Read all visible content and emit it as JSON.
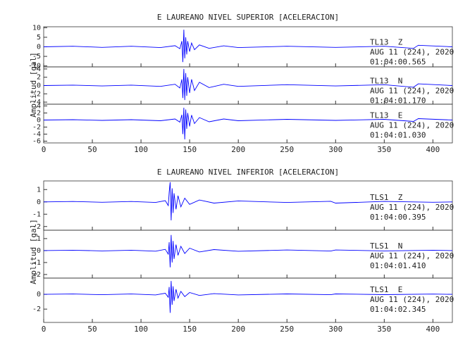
{
  "chart_data": [
    {
      "type": "line",
      "title": "E LAUREANO NIVEL SUPERIOR [ACELERACION]",
      "ylabel": "Amplitud [gal]",
      "xlim": [
        0,
        420
      ],
      "xticks": [
        0,
        50,
        100,
        150,
        200,
        250,
        300,
        350,
        400
      ],
      "x": [
        0,
        30,
        60,
        90,
        120,
        135,
        140,
        142,
        143,
        144,
        145,
        146,
        147,
        148,
        150,
        152,
        155,
        160,
        170,
        185,
        200,
        250,
        300,
        350,
        380,
        385,
        420
      ],
      "series": [
        {
          "name": "TL13  Z",
          "date": "AUG 11 (224), 2020",
          "time": "01:04:00.565",
          "color": "#0000ff",
          "ylim": [
            -10.5,
            10.5
          ],
          "yticks": [
            10,
            5,
            0,
            -5,
            -10
          ],
          "values": [
            0,
            0.3,
            -0.3,
            0.3,
            -0.4,
            0.6,
            -1,
            3,
            -8,
            9,
            -6,
            5,
            -4,
            3,
            -2.5,
            2,
            -1.5,
            1,
            -0.8,
            0.5,
            -0.4,
            0.3,
            -0.3,
            0.3,
            -0.8,
            0.8,
            0
          ]
        },
        {
          "name": "TL13  N",
          "date": "AUG 11 (224), 2020",
          "time": "01:04:01.170",
          "color": "#0000ff",
          "ylim": [
            -4.5,
            4.5
          ],
          "yticks": [
            4,
            2,
            0,
            -2,
            -4
          ],
          "values": [
            0,
            0.1,
            -0.1,
            0.1,
            -0.2,
            0.3,
            -0.6,
            1.5,
            -3,
            4,
            -3.5,
            3,
            -2.5,
            2,
            -1.8,
            1.5,
            -1.2,
            0.8,
            -0.5,
            0.3,
            -0.2,
            0.2,
            -0.1,
            0.2,
            -0.4,
            0.4,
            0
          ]
        },
        {
          "name": "TL13  E",
          "date": "AUG 11 (224), 2020",
          "time": "01:04:01.030",
          "color": "#0000ff",
          "ylim": [
            -6.5,
            4.5
          ],
          "yticks": [
            4,
            2,
            0,
            -2,
            -4,
            -6
          ],
          "values": [
            0,
            0.1,
            -0.1,
            0.1,
            -0.2,
            0.3,
            -0.6,
            1.5,
            -4,
            3.5,
            -5.5,
            3,
            -2.5,
            2,
            -1.8,
            1.4,
            -1,
            0.7,
            -0.5,
            0.3,
            -0.2,
            0.2,
            -0.1,
            0.2,
            -0.4,
            0.4,
            0
          ]
        }
      ]
    },
    {
      "type": "line",
      "title": "E LAUREANO NIVEL INFERIOR [ACELERACION]",
      "ylabel": "Amplitud [gal]",
      "xlim": [
        0,
        420
      ],
      "xticks": [
        0,
        50,
        100,
        150,
        200,
        250,
        300,
        350,
        400
      ],
      "x": [
        0,
        30,
        60,
        90,
        115,
        125,
        128,
        129,
        130,
        131,
        132,
        133,
        134,
        136,
        138,
        141,
        145,
        150,
        160,
        175,
        200,
        250,
        295,
        300,
        350,
        400,
        420
      ],
      "series": [
        {
          "name": "TLS1  Z",
          "date": "AUG 11 (224), 2020",
          "time": "01:04:00.395",
          "color": "#0000ff",
          "ylim": [
            -2.3,
            1.7
          ],
          "yticks": [
            1,
            0,
            -1,
            -2
          ],
          "values": [
            0,
            0.03,
            -0.03,
            0.03,
            -0.05,
            0.1,
            -0.3,
            0.8,
            1.6,
            -1.5,
            1.1,
            -0.9,
            0.7,
            -0.6,
            0.5,
            -0.4,
            0.3,
            -0.2,
            0.15,
            -0.1,
            0.08,
            -0.05,
            0.05,
            -0.1,
            0.04,
            -0.03,
            0
          ]
        },
        {
          "name": "TLS1  N",
          "date": "AUG 11 (224), 2020",
          "time": "01:04:01.410",
          "color": "#0000ff",
          "ylim": [
            -2.3,
            1.7
          ],
          "yticks": [
            1,
            0,
            -1,
            -2
          ],
          "values": [
            0,
            0.03,
            -0.03,
            0.03,
            -0.05,
            0.1,
            -0.3,
            0.7,
            -1.4,
            1.3,
            -1,
            0.8,
            -0.7,
            0.5,
            -0.4,
            0.35,
            -0.25,
            0.2,
            -0.12,
            0.08,
            -0.06,
            0.05,
            -0.04,
            0.05,
            -0.03,
            0.03,
            0
          ]
        },
        {
          "name": "TLS1  E",
          "date": "AUG 11 (224), 2020",
          "time": "01:04:02.345",
          "color": "#0000ff",
          "ylim": [
            -3.8,
            2.2
          ],
          "yticks": [
            0,
            -2
          ],
          "values": [
            0,
            0.05,
            -0.05,
            0.05,
            -0.08,
            0.15,
            -0.4,
            1,
            -2.5,
            1.8,
            -1.4,
            1.1,
            -0.9,
            0.7,
            -0.5,
            0.4,
            -0.3,
            0.25,
            -0.15,
            0.1,
            -0.08,
            0.06,
            -0.05,
            0.06,
            -0.04,
            0.04,
            0
          ]
        }
      ]
    }
  ]
}
